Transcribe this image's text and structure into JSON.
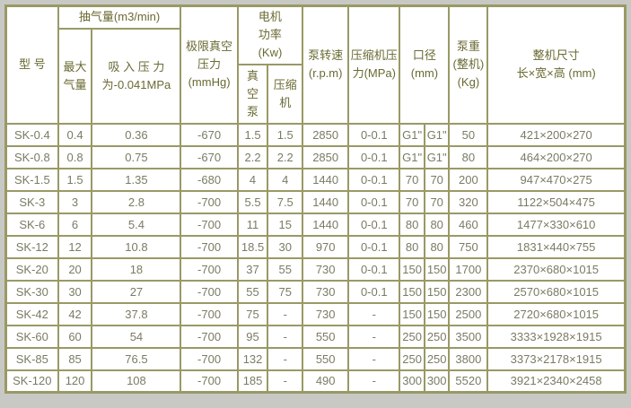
{
  "colors": {
    "outer_background": "#c8c8c4",
    "table_border": "#999966",
    "header_text": "#6a6a33",
    "body_text": "#7b7b64",
    "cell_background": "#ffffff"
  },
  "table": {
    "header": {
      "model": "型 号",
      "pumping_capacity_group": "抽气量(m3/min)",
      "max_air_volume": "最大\n气量",
      "suction_pressure": "吸 入 压 力\n为-0.041MPa",
      "ultimate_vacuum": "极限真空\n压力\n(mmHg)",
      "motor_power_group": "电机\n功率\n(Kw)",
      "vacuum_pump": "真\n空\n泵",
      "compressor": "压缩\n机",
      "pump_speed": "泵转速\n(r.p.m)",
      "compressor_pressure": "压缩机压\n力(MPa)",
      "caliber": "口径\n(mm)",
      "pump_weight": "泵重\n(整机)\n(Kg)",
      "overall_dimensions": "整机尺寸\n长×宽×高 (mm)"
    },
    "column_names": [
      "model",
      "max-air-volume",
      "suction-pressure",
      "ultimate-vacuum-pressure",
      "motor-power-vacuum-pump",
      "motor-power-compressor",
      "pump-speed",
      "compressor-pressure",
      "caliber-1",
      "caliber-2",
      "pump-weight",
      "overall-dimensions"
    ],
    "rows": [
      [
        "SK-0.4",
        "0.4",
        "0.36",
        "-670",
        "1.5",
        "1.5",
        "2850",
        "0-0.1",
        "G1\"",
        "G1\"",
        "50",
        "421×200×270"
      ],
      [
        "SK-0.8",
        "0.8",
        "0.75",
        "-670",
        "2.2",
        "2.2",
        "2850",
        "0-0.1",
        "G1\"",
        "G1\"",
        "80",
        "464×200×270"
      ],
      [
        "SK-1.5",
        "1.5",
        "1.35",
        "-680",
        "4",
        "4",
        "1440",
        "0-0.1",
        "70",
        "70",
        "200",
        "947×470×275"
      ],
      [
        "SK-3",
        "3",
        "2.8",
        "-700",
        "5.5",
        "7.5",
        "1440",
        "0-0.1",
        "70",
        "70",
        "320",
        "1122×504×475"
      ],
      [
        "SK-6",
        "6",
        "5.4",
        "-700",
        "11",
        "15",
        "1440",
        "0-0.1",
        "80",
        "80",
        "460",
        "1477×330×610"
      ],
      [
        "SK-12",
        "12",
        "10.8",
        "-700",
        "18.5",
        "30",
        "970",
        "0-0.1",
        "80",
        "80",
        "750",
        "1831×440×755"
      ],
      [
        "SK-20",
        "20",
        "18",
        "-700",
        "37",
        "55",
        "730",
        "0-0.1",
        "150",
        "150",
        "1700",
        "2370×680×1015"
      ],
      [
        "SK-30",
        "30",
        "27",
        "-700",
        "55",
        "75",
        "730",
        "0-0.1",
        "150",
        "150",
        "2300",
        "2570×680×1015"
      ],
      [
        "SK-42",
        "42",
        "37.8",
        "-700",
        "75",
        "-",
        "730",
        "-",
        "150",
        "150",
        "2500",
        "2720×680×1015"
      ],
      [
        "SK-60",
        "60",
        "54",
        "-700",
        "95",
        "-",
        "550",
        "-",
        "250",
        "250",
        "3500",
        "3333×1928×1915"
      ],
      [
        "SK-85",
        "85",
        "76.5",
        "-700",
        "132",
        "-",
        "550",
        "-",
        "250",
        "250",
        "3800",
        "3373×2178×1915"
      ],
      [
        "SK-120",
        "120",
        "108",
        "-700",
        "185",
        "-",
        "490",
        "-",
        "300",
        "300",
        "5520",
        "3921×2340×2458"
      ]
    ]
  }
}
